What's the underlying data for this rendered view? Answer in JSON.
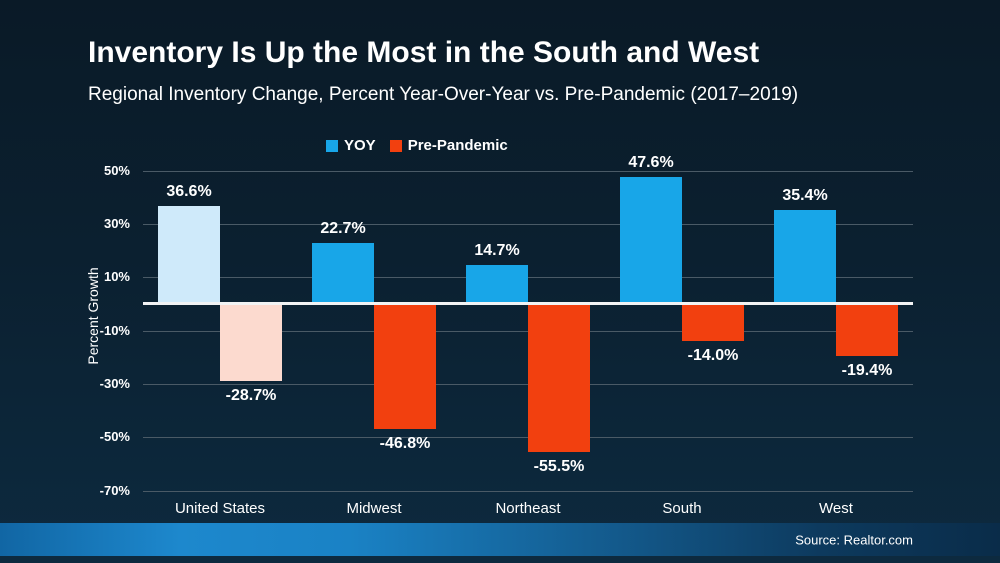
{
  "header": {
    "title": "Inventory Is Up the Most in the South and West",
    "subtitle": "Regional Inventory Change, Percent Year-Over-Year vs. Pre-Pandemic (2017–2019)"
  },
  "legend": {
    "items": [
      {
        "label": "YOY",
        "color": "#18a6e8"
      },
      {
        "label": "Pre-Pandemic",
        "color": "#f2400f"
      }
    ]
  },
  "chart_data": {
    "type": "bar",
    "title": "Regional Inventory Change, Percent Year-Over-Year vs. Pre-Pandemic (2017–2019)",
    "categories": [
      "United States",
      "Midwest",
      "Northeast",
      "South",
      "West"
    ],
    "series": [
      {
        "name": "YOY",
        "values": [
          36.6,
          22.7,
          14.7,
          47.6,
          35.4
        ],
        "labels": [
          "36.6%",
          "22.7%",
          "14.7%",
          "47.6%",
          "35.4%"
        ],
        "color": "#18a6e8",
        "highlight_color": "#cfeafa"
      },
      {
        "name": "Pre-Pandemic",
        "values": [
          -28.7,
          -46.8,
          -55.5,
          -14.0,
          -19.4
        ],
        "labels": [
          "-28.7%",
          "-46.8%",
          "-55.5%",
          "-14.0%",
          "-19.4%"
        ],
        "color": "#f2400f",
        "highlight_color": "#fcdacf"
      }
    ],
    "highlight_category": "United States",
    "xlabel": "",
    "ylabel": "Percent Growth",
    "yticks": [
      50,
      30,
      10,
      -10,
      -30,
      -50,
      -70
    ],
    "ytick_labels": [
      "50%",
      "30%",
      "10%",
      "-10%",
      "-30%",
      "-50%",
      "-70%"
    ],
    "ylim": [
      -75,
      55
    ],
    "grid": true,
    "legend_position": "top-center",
    "colors": {
      "gridline": "#4a5a66",
      "zero_line": "#f2f3f4",
      "text": "#ffffff"
    }
  },
  "footer": {
    "source": "Source: Realtor.com"
  }
}
